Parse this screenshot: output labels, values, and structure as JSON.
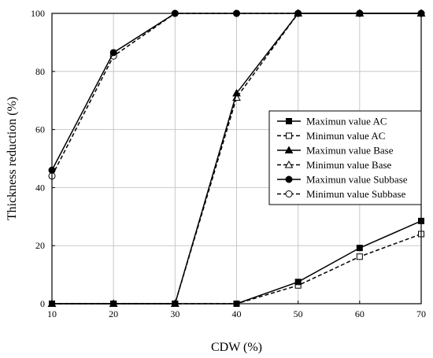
{
  "chart_data": {
    "type": "line",
    "title": "",
    "xlabel": "CDW (%)",
    "ylabel": "Thickness reduction (%)",
    "xlim": [
      10,
      70
    ],
    "ylim": [
      0,
      100
    ],
    "x_ticks": [
      10,
      20,
      30,
      40,
      50,
      60,
      70
    ],
    "y_ticks": [
      0,
      20,
      40,
      60,
      80,
      100
    ],
    "grid": true,
    "legend_position": "right",
    "x": [
      10,
      20,
      30,
      40,
      50,
      60,
      70
    ],
    "series": [
      {
        "name": "Maximun value AC",
        "values": [
          0,
          0,
          0,
          0,
          7.5,
          19.2,
          28.5
        ],
        "line": "solid",
        "marker": "square",
        "filled": true
      },
      {
        "name": "Minimun value AC",
        "values": [
          0,
          0,
          0,
          0,
          6.3,
          16.2,
          24.0
        ],
        "line": "dashed",
        "marker": "square",
        "filled": false
      },
      {
        "name": "Maximun value Base",
        "values": [
          0,
          0,
          0,
          72.5,
          100,
          100,
          100
        ],
        "line": "solid",
        "marker": "triangle",
        "filled": true
      },
      {
        "name": "Minimun value Base",
        "values": [
          0,
          0,
          0,
          71.0,
          100,
          100,
          100
        ],
        "line": "dashed",
        "marker": "triangle",
        "filled": false
      },
      {
        "name": "Maximun value Subbase",
        "values": [
          46.0,
          86.5,
          100,
          100,
          100,
          100,
          100
        ],
        "line": "solid",
        "marker": "circle",
        "filled": true
      },
      {
        "name": "Minimun value Subbase",
        "values": [
          44.0,
          85.3,
          100,
          100,
          100,
          100,
          100
        ],
        "line": "dashed",
        "marker": "circle",
        "filled": false
      }
    ]
  }
}
